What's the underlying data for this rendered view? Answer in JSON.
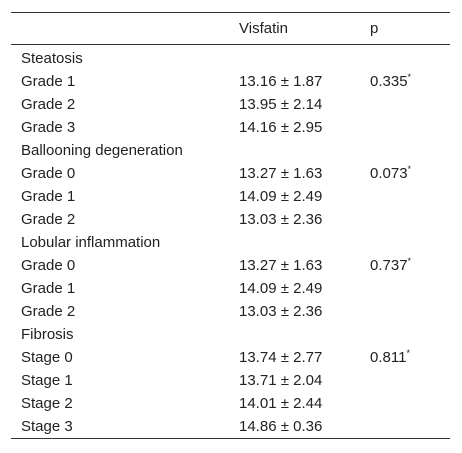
{
  "header": {
    "col0": "",
    "col1": "Visfatin",
    "col2": "p"
  },
  "rows": [
    {
      "label": "Steatosis",
      "value": "",
      "p": "",
      "sup": ""
    },
    {
      "label": "Grade 1",
      "value": "13.16 ± 1.87",
      "p": "0.335",
      "sup": "*"
    },
    {
      "label": "Grade 2",
      "value": "13.95 ± 2.14",
      "p": "",
      "sup": ""
    },
    {
      "label": "Grade 3",
      "value": "14.16 ± 2.95",
      "p": "",
      "sup": ""
    },
    {
      "label": "Ballooning degeneration",
      "value": "",
      "p": "",
      "sup": ""
    },
    {
      "label": "Grade 0",
      "value": "13.27 ± 1.63",
      "p": "0.073",
      "sup": "*"
    },
    {
      "label": "Grade 1",
      "value": "14.09 ± 2.49",
      "p": "",
      "sup": ""
    },
    {
      "label": "Grade 2",
      "value": "13.03 ± 2.36",
      "p": "",
      "sup": ""
    },
    {
      "label": "Lobular inflammation",
      "value": "",
      "p": "",
      "sup": ""
    },
    {
      "label": "Grade 0",
      "value": "13.27 ± 1.63",
      "p": "0.737",
      "sup": "*"
    },
    {
      "label": "Grade 1",
      "value": "14.09 ± 2.49",
      "p": "",
      "sup": ""
    },
    {
      "label": "Grade 2",
      "value": "13.03 ± 2.36",
      "p": "",
      "sup": ""
    },
    {
      "label": "Fibrosis",
      "value": "",
      "p": "",
      "sup": ""
    },
    {
      "label": "Stage 0",
      "value": "13.74 ± 2.77",
      "p": "0.811",
      "sup": "*"
    },
    {
      "label": "Stage 1",
      "value": "13.71 ± 2.04",
      "p": "",
      "sup": ""
    },
    {
      "label": "Stage 2",
      "value": "14.01 ± 2.44",
      "p": "",
      "sup": ""
    },
    {
      "label": "Stage 3",
      "value": "14.86 ± 0.36",
      "p": "",
      "sup": ""
    }
  ]
}
